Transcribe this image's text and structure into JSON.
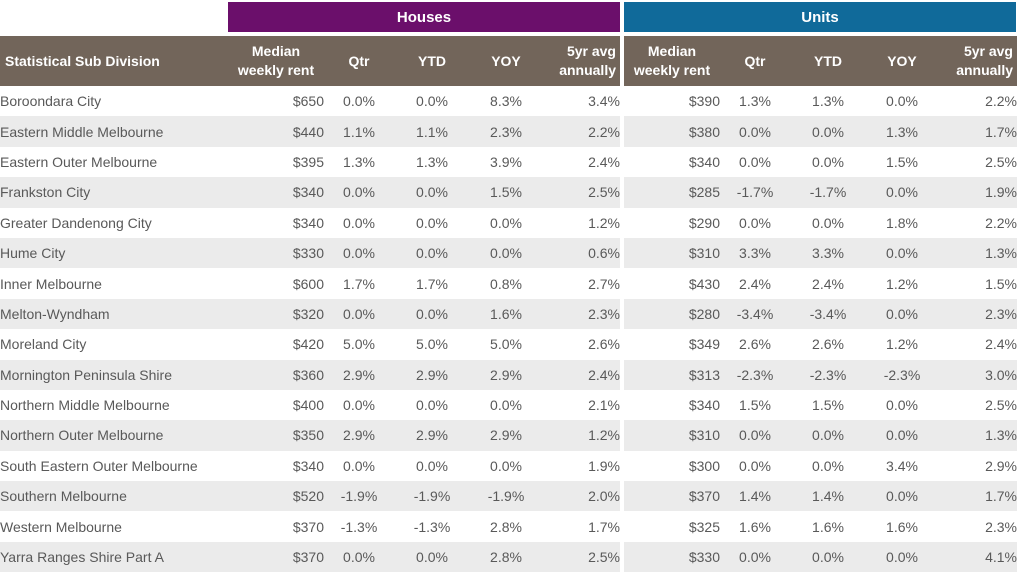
{
  "groups": {
    "houses": "Houses",
    "units": "Units"
  },
  "columns": {
    "division": "Statistical Sub Division",
    "median_l1": "Median",
    "median_l2": "weekly rent",
    "qtr": "Qtr",
    "ytd": "YTD",
    "yoy": "YOY",
    "avg_l1": "5yr avg",
    "avg_l2": "annually"
  },
  "rows": [
    {
      "name": "Boroondara City",
      "h": [
        "$650",
        "0.0%",
        "0.0%",
        "8.3%",
        "3.4%"
      ],
      "u": [
        "$390",
        "1.3%",
        "1.3%",
        "0.0%",
        "2.2%"
      ]
    },
    {
      "name": "Eastern Middle Melbourne",
      "h": [
        "$440",
        "1.1%",
        "1.1%",
        "2.3%",
        "2.2%"
      ],
      "u": [
        "$380",
        "0.0%",
        "0.0%",
        "1.3%",
        "1.7%"
      ]
    },
    {
      "name": "Eastern Outer Melbourne",
      "h": [
        "$395",
        "1.3%",
        "1.3%",
        "3.9%",
        "2.4%"
      ],
      "u": [
        "$340",
        "0.0%",
        "0.0%",
        "1.5%",
        "2.5%"
      ]
    },
    {
      "name": "Frankston City",
      "h": [
        "$340",
        "0.0%",
        "0.0%",
        "1.5%",
        "2.5%"
      ],
      "u": [
        "$285",
        "-1.7%",
        "-1.7%",
        "0.0%",
        "1.9%"
      ]
    },
    {
      "name": "Greater Dandenong City",
      "h": [
        "$340",
        "0.0%",
        "0.0%",
        "0.0%",
        "1.2%"
      ],
      "u": [
        "$290",
        "0.0%",
        "0.0%",
        "1.8%",
        "2.2%"
      ]
    },
    {
      "name": "Hume City",
      "h": [
        "$330",
        "0.0%",
        "0.0%",
        "0.0%",
        "0.6%"
      ],
      "u": [
        "$310",
        "3.3%",
        "3.3%",
        "0.0%",
        "1.3%"
      ]
    },
    {
      "name": "Inner Melbourne",
      "h": [
        "$600",
        "1.7%",
        "1.7%",
        "0.8%",
        "2.7%"
      ],
      "u": [
        "$430",
        "2.4%",
        "2.4%",
        "1.2%",
        "1.5%"
      ]
    },
    {
      "name": "Melton-Wyndham",
      "h": [
        "$320",
        "0.0%",
        "0.0%",
        "1.6%",
        "2.3%"
      ],
      "u": [
        "$280",
        "-3.4%",
        "-3.4%",
        "0.0%",
        "2.3%"
      ]
    },
    {
      "name": "Moreland City",
      "h": [
        "$420",
        "5.0%",
        "5.0%",
        "5.0%",
        "2.6%"
      ],
      "u": [
        "$349",
        "2.6%",
        "2.6%",
        "1.2%",
        "2.4%"
      ]
    },
    {
      "name": "Mornington Peninsula Shire",
      "h": [
        "$360",
        "2.9%",
        "2.9%",
        "2.9%",
        "2.4%"
      ],
      "u": [
        "$313",
        "-2.3%",
        "-2.3%",
        "-2.3%",
        "3.0%"
      ]
    },
    {
      "name": "Northern Middle Melbourne",
      "h": [
        "$400",
        "0.0%",
        "0.0%",
        "0.0%",
        "2.1%"
      ],
      "u": [
        "$340",
        "1.5%",
        "1.5%",
        "0.0%",
        "2.5%"
      ]
    },
    {
      "name": "Northern Outer Melbourne",
      "h": [
        "$350",
        "2.9%",
        "2.9%",
        "2.9%",
        "1.2%"
      ],
      "u": [
        "$310",
        "0.0%",
        "0.0%",
        "0.0%",
        "1.3%"
      ]
    },
    {
      "name": "South Eastern Outer Melbourne",
      "h": [
        "$340",
        "0.0%",
        "0.0%",
        "0.0%",
        "1.9%"
      ],
      "u": [
        "$300",
        "0.0%",
        "0.0%",
        "3.4%",
        "2.9%"
      ]
    },
    {
      "name": "Southern Melbourne",
      "h": [
        "$520",
        "-1.9%",
        "-1.9%",
        "-1.9%",
        "2.0%"
      ],
      "u": [
        "$370",
        "1.4%",
        "1.4%",
        "0.0%",
        "1.7%"
      ]
    },
    {
      "name": "Western Melbourne",
      "h": [
        "$370",
        "-1.3%",
        "-1.3%",
        "2.8%",
        "1.7%"
      ],
      "u": [
        "$325",
        "1.6%",
        "1.6%",
        "1.6%",
        "2.3%"
      ]
    },
    {
      "name": "Yarra Ranges Shire Part A",
      "h": [
        "$370",
        "0.0%",
        "0.0%",
        "2.8%",
        "2.5%"
      ],
      "u": [
        "$330",
        "0.0%",
        "0.0%",
        "0.0%",
        "4.1%"
      ]
    }
  ]
}
